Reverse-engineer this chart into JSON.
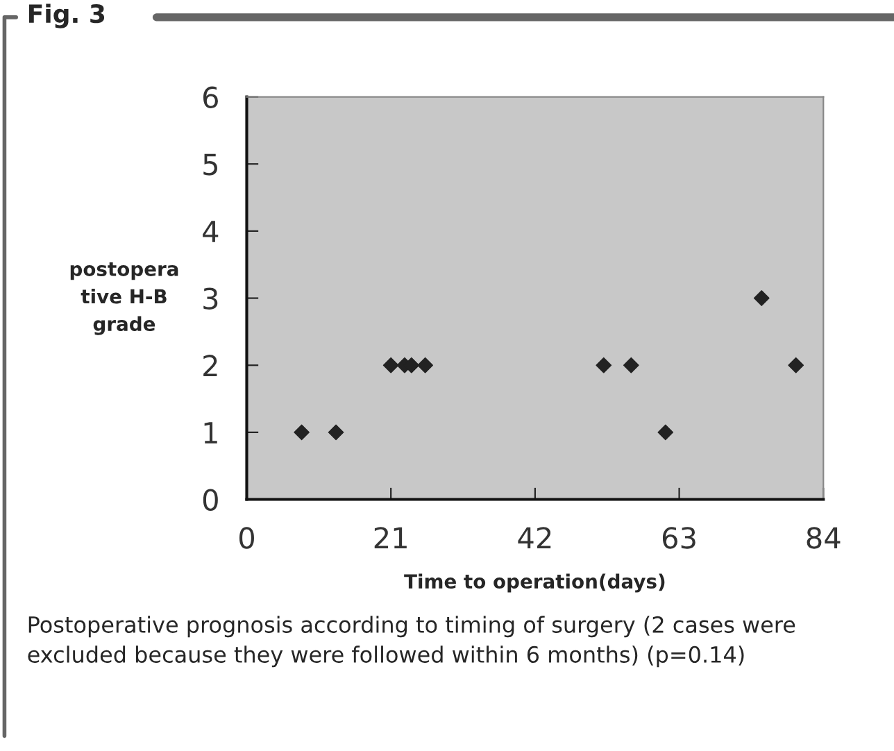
{
  "chart_data": {
    "type": "scatter",
    "title": "Fig. 3",
    "xlabel": "Time to operation(days)",
    "ylabel": "postopera\ntive H-B\ngrade",
    "x": [
      8,
      13,
      21,
      23,
      24,
      26,
      52,
      56,
      61,
      75,
      80
    ],
    "values": [
      1,
      1,
      2,
      2,
      2,
      2,
      2,
      2,
      1,
      3,
      2
    ],
    "color": "#222222",
    "marker": "diamond",
    "xlim": [
      0,
      84
    ],
    "xticks": [
      0,
      21,
      42,
      63,
      84
    ],
    "ylim": [
      0,
      6
    ],
    "yticks": [
      0,
      1,
      2,
      3,
      4,
      5,
      6
    ],
    "annotations": [
      "Postoperative prognosis according to timing of surgery (2 cases were excluded because they were followed within 6 months) (p=0.14)"
    ]
  }
}
